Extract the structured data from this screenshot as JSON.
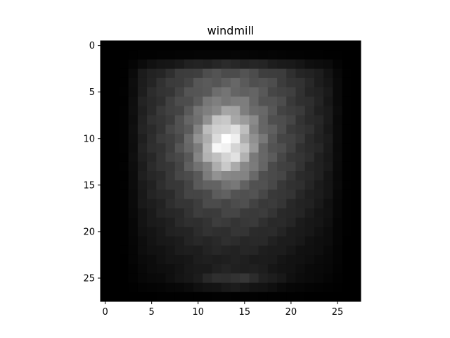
{
  "chart_data": {
    "type": "heatmap",
    "title": "windmill",
    "xlabel": "",
    "ylabel": "",
    "colormap": "gray",
    "grid": false,
    "x_ticks": [
      0,
      5,
      10,
      15,
      20,
      25
    ],
    "y_ticks": [
      0,
      5,
      10,
      15,
      20,
      25
    ],
    "xlim": [
      -0.5,
      27.5
    ],
    "ylim": [
      27.5,
      -0.5
    ],
    "rows": 28,
    "cols": 28,
    "value_range": [
      0,
      255
    ],
    "gaussian_components": [
      {
        "center": [
          13,
          10.5
        ],
        "sigma": [
          2.0,
          2.5
        ],
        "peak": 160
      },
      {
        "center": [
          13.5,
          9
        ],
        "sigma": [
          6.5,
          9.0
        ],
        "peak": 115
      },
      {
        "center": [
          14,
          25.5
        ],
        "sigma": [
          3.0,
          0.8
        ],
        "peak": 45
      }
    ],
    "edge_falloff": {
      "x_range": [
        2,
        26
      ],
      "y_range": [
        1,
        27
      ]
    }
  }
}
